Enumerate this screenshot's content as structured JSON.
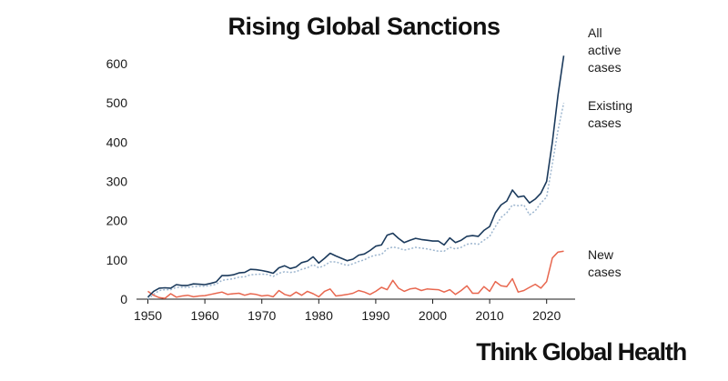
{
  "brand": "Think Global Health",
  "chart_data": {
    "type": "line",
    "title": "Rising Global Sanctions",
    "xlabel": "",
    "ylabel": "",
    "xlim": [
      1948,
      2025
    ],
    "ylim": [
      0,
      630
    ],
    "x_ticks": [
      1950,
      1960,
      1970,
      1980,
      1990,
      2000,
      2010,
      2020
    ],
    "y_ticks": [
      0,
      100,
      200,
      300,
      400,
      500,
      600
    ],
    "grid": false,
    "legend": "inline labels at line ends",
    "colors": {
      "all": "#1b3a5c",
      "existing": "#9db6cf",
      "new": "#e8674f"
    },
    "x": [
      1950,
      1951,
      1952,
      1953,
      1954,
      1955,
      1956,
      1957,
      1958,
      1959,
      1960,
      1961,
      1962,
      1963,
      1964,
      1965,
      1966,
      1967,
      1968,
      1969,
      1970,
      1971,
      1972,
      1973,
      1974,
      1975,
      1976,
      1977,
      1978,
      1979,
      1980,
      1981,
      1982,
      1983,
      1984,
      1985,
      1986,
      1987,
      1988,
      1989,
      1990,
      1991,
      1992,
      1993,
      1994,
      1995,
      1996,
      1997,
      1998,
      1999,
      2000,
      2001,
      2002,
      2003,
      2004,
      2005,
      2006,
      2007,
      2008,
      2009,
      2010,
      2011,
      2012,
      2013,
      2014,
      2015,
      2016,
      2017,
      2018,
      2019,
      2020,
      2021,
      2022,
      2023
    ],
    "series": [
      {
        "name": "All active cases",
        "key": "all",
        "style": "solid",
        "values": [
          5,
          20,
          28,
          29,
          28,
          37,
          35,
          35,
          39,
          38,
          37,
          40,
          44,
          60,
          60,
          62,
          67,
          68,
          76,
          75,
          73,
          70,
          66,
          80,
          85,
          78,
          82,
          93,
          97,
          108,
          92,
          104,
          117,
          110,
          104,
          98,
          102,
          112,
          115,
          124,
          135,
          138,
          163,
          168,
          155,
          144,
          150,
          155,
          152,
          150,
          148,
          148,
          138,
          156,
          144,
          150,
          160,
          162,
          160,
          175,
          185,
          220,
          240,
          250,
          278,
          260,
          263,
          245,
          255,
          270,
          300,
          400,
          520,
          620
        ]
      },
      {
        "name": "Existing cases",
        "key": "existing",
        "style": "dotted",
        "values": [
          0,
          12,
          22,
          24,
          24,
          30,
          30,
          30,
          32,
          33,
          33,
          35,
          38,
          48,
          50,
          52,
          56,
          57,
          62,
          63,
          64,
          63,
          58,
          66,
          70,
          68,
          70,
          76,
          80,
          88,
          80,
          86,
          95,
          95,
          90,
          86,
          90,
          96,
          100,
          108,
          112,
          114,
          128,
          133,
          130,
          125,
          128,
          132,
          130,
          128,
          125,
          122,
          122,
          132,
          128,
          132,
          140,
          142,
          140,
          150,
          160,
          185,
          208,
          220,
          240,
          238,
          240,
          215,
          225,
          245,
          260,
          345,
          430,
          500
        ]
      },
      {
        "name": "New cases",
        "key": "new",
        "style": "solid",
        "values": [
          20,
          10,
          4,
          2,
          14,
          5,
          8,
          10,
          6,
          8,
          9,
          12,
          15,
          18,
          12,
          14,
          15,
          10,
          14,
          12,
          8,
          10,
          6,
          22,
          12,
          8,
          18,
          10,
          20,
          14,
          6,
          20,
          26,
          8,
          10,
          12,
          15,
          22,
          18,
          12,
          20,
          30,
          24,
          48,
          28,
          20,
          26,
          28,
          22,
          26,
          25,
          24,
          18,
          24,
          12,
          22,
          34,
          15,
          15,
          32,
          20,
          45,
          34,
          32,
          52,
          18,
          22,
          30,
          38,
          28,
          45,
          105,
          120,
          122
        ]
      }
    ],
    "series_labels": [
      {
        "key": "all",
        "lines": [
          "All",
          "active",
          "cases"
        ]
      },
      {
        "key": "existing",
        "lines": [
          "Existing",
          "cases"
        ]
      },
      {
        "key": "new",
        "lines": [
          "New",
          "cases"
        ]
      }
    ]
  }
}
